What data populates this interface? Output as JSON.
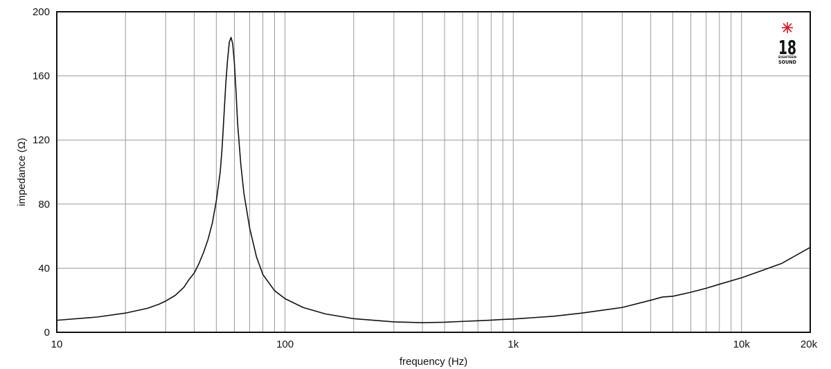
{
  "chart_data": {
    "type": "line",
    "xscale": "log",
    "xlabel": "frequency (Hz)",
    "ylabel": "impedance (Ω)",
    "xlim": [
      10,
      20000
    ],
    "ylim": [
      0,
      200
    ],
    "grid": true,
    "x_ticks": [
      {
        "value": 10,
        "label": "10"
      },
      {
        "value": 100,
        "label": "100"
      },
      {
        "value": 1000,
        "label": "1k"
      },
      {
        "value": 10000,
        "label": "10k"
      },
      {
        "value": 20000,
        "label": "20k"
      }
    ],
    "y_ticks": [
      {
        "value": 0,
        "label": "0"
      },
      {
        "value": 40,
        "label": "40"
      },
      {
        "value": 80,
        "label": "80"
      },
      {
        "value": 120,
        "label": "120"
      },
      {
        "value": 160,
        "label": "160"
      },
      {
        "value": 200,
        "label": "200"
      }
    ],
    "series": [
      {
        "color": "#111111",
        "x": [
          10,
          15,
          20,
          25,
          28,
          30,
          33,
          36,
          38,
          40,
          42,
          44,
          46,
          48,
          50,
          52,
          53,
          54,
          55,
          56,
          57,
          58,
          59,
          60,
          61,
          62,
          64,
          66,
          70,
          75,
          80,
          90,
          100,
          120,
          150,
          200,
          300,
          400,
          500,
          600,
          700,
          800,
          900,
          1000,
          1500,
          2000,
          3000,
          4000,
          4500,
          5000,
          6000,
          7000,
          8000,
          10000,
          12000,
          15000,
          20000
        ],
        "y": [
          7.5,
          9.5,
          12,
          15,
          17.5,
          19.5,
          23,
          28,
          33,
          37,
          43,
          50,
          58,
          68,
          82,
          100,
          115,
          135,
          155,
          170,
          181,
          184,
          180,
          168,
          150,
          130,
          105,
          87,
          65,
          47,
          36,
          26,
          21,
          15.5,
          11.5,
          8.5,
          6.5,
          6,
          6.3,
          6.8,
          7.2,
          7.6,
          8,
          8.3,
          10,
          12,
          15.5,
          20,
          22,
          22.5,
          25,
          27.5,
          30,
          34,
          38,
          43,
          53
        ]
      }
    ]
  },
  "logo": {
    "number": "18",
    "line1": "EIGHTEEN",
    "line2": "SOUND",
    "star_color": "#d8141e"
  }
}
